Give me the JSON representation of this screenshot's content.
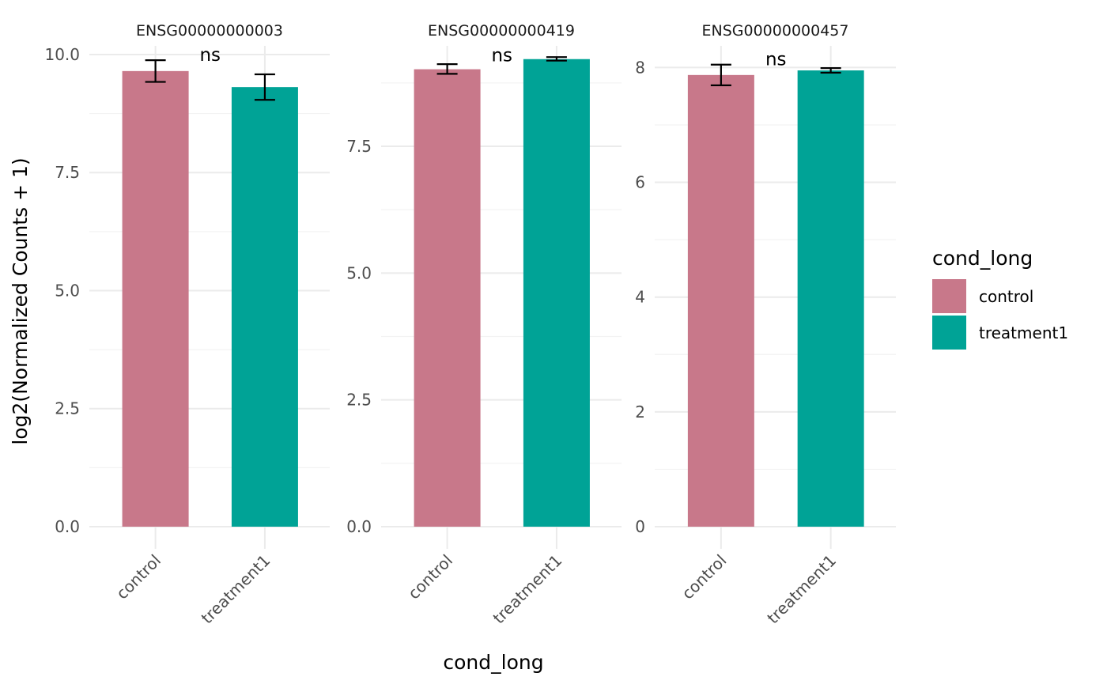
{
  "chart_data": {
    "type": "bar",
    "xlabel": "cond_long",
    "ylabel": "log2(Normalized Counts + 1)",
    "categories": [
      "control",
      "treatment1"
    ],
    "colors": {
      "control": "#C8788A",
      "treatment1": "#00A396"
    },
    "legend": {
      "title": "cond_long",
      "position": "right",
      "entries": [
        "control",
        "treatment1"
      ]
    },
    "grid": true,
    "facets": [
      {
        "title": "ENSG00000000003",
        "ylim": [
          0,
          10.15
        ],
        "major_ticks": [
          0,
          2.5,
          5,
          7.5,
          10
        ],
        "tick_labels": [
          "0.0",
          "2.5",
          "5.0",
          "7.5",
          "10.0"
        ],
        "minor_ticks": [
          1.25,
          3.75,
          6.25,
          8.75
        ],
        "values": [
          9.65,
          9.31
        ],
        "error_low": [
          9.42,
          9.04
        ],
        "error_high": [
          9.88,
          9.58
        ],
        "significance": "ns",
        "significance_y": 10
      },
      {
        "title": "ENSG00000000419",
        "ylim": [
          0,
          9.45
        ],
        "major_ticks": [
          0,
          2.5,
          5,
          7.5
        ],
        "tick_labels": [
          "0.0",
          "2.5",
          "5.0",
          "7.5"
        ],
        "minor_ticks": [
          1.25,
          3.75,
          6.25,
          8.75
        ],
        "values": [
          9.02,
          9.22
        ],
        "error_low": [
          8.93,
          9.19
        ],
        "error_high": [
          9.12,
          9.26
        ],
        "significance": "ns",
        "significance_y": 9.3
      },
      {
        "title": "ENSG00000000457",
        "ylim": [
          0,
          8.35
        ],
        "major_ticks": [
          0,
          2,
          4,
          6,
          8
        ],
        "tick_labels": [
          "0",
          "2",
          "4",
          "6",
          "8"
        ],
        "minor_ticks": [
          1,
          3,
          5,
          7
        ],
        "values": [
          7.87,
          7.95
        ],
        "error_low": [
          7.69,
          7.91
        ],
        "error_high": [
          8.05,
          7.99
        ],
        "significance": "ns",
        "significance_y": 8.15
      }
    ]
  }
}
